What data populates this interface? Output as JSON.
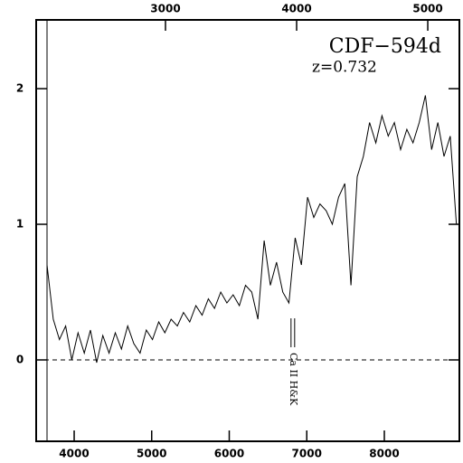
{
  "chart_data": {
    "type": "line",
    "title": "CDF−594d",
    "annotations": [
      "z=0.732",
      "Ca II H&K"
    ],
    "x": [
      3650,
      3730,
      3810,
      3890,
      3970,
      4050,
      4130,
      4210,
      4290,
      4370,
      4450,
      4530,
      4610,
      4690,
      4770,
      4850,
      4930,
      5010,
      5090,
      5170,
      5250,
      5330,
      5410,
      5490,
      5570,
      5650,
      5730,
      5810,
      5890,
      5970,
      6050,
      6130,
      6210,
      6290,
      6370,
      6450,
      6530,
      6610,
      6690,
      6770,
      6850,
      6930,
      7010,
      7090,
      7170,
      7250,
      7330,
      7410,
      7490,
      7570,
      7650,
      7730,
      7810,
      7890,
      7970,
      8050,
      8130,
      8210,
      8290,
      8370,
      8450,
      8530,
      8610,
      8690,
      8770,
      8850,
      8930
    ],
    "series": [
      {
        "color": "#000000",
        "values": [
          0.7,
          0.3,
          0.15,
          0.25,
          0.0,
          0.2,
          0.05,
          0.22,
          -0.02,
          0.18,
          0.05,
          0.2,
          0.08,
          0.25,
          0.12,
          0.05,
          0.22,
          0.15,
          0.28,
          0.2,
          0.3,
          0.25,
          0.35,
          0.28,
          0.4,
          0.33,
          0.45,
          0.38,
          0.5,
          0.42,
          0.48,
          0.4,
          0.55,
          0.5,
          0.3,
          0.88,
          0.55,
          0.72,
          0.5,
          0.42,
          0.9,
          0.7,
          1.2,
          1.05,
          1.15,
          1.1,
          1.0,
          1.2,
          1.3,
          0.55,
          1.35,
          1.5,
          1.75,
          1.6,
          1.8,
          1.65,
          1.75,
          1.55,
          1.7,
          1.6,
          1.75,
          1.95,
          1.55,
          1.75,
          1.5,
          1.65,
          1.0
        ]
      }
    ],
    "xlim": [
      3510,
      8968
    ],
    "xticks": [
      4000,
      5000,
      6000,
      7000,
      8000
    ],
    "x2lim": [
      2014,
      5241
    ],
    "x2ticks": [
      3000,
      4000,
      5000
    ],
    "ylim": [
      -0.6,
      2.507
    ],
    "yticks": [
      0,
      1,
      2
    ],
    "marker_x": 6820
  }
}
